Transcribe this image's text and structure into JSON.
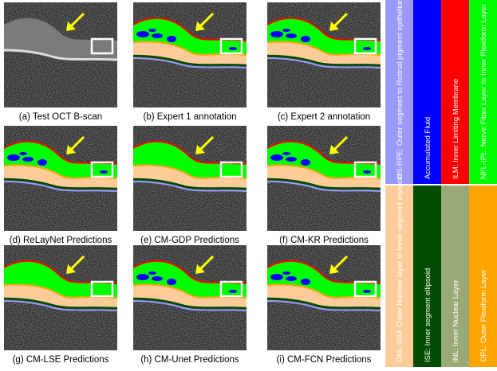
{
  "panels": [
    {
      "caption": "(a) Test OCT B-scan"
    },
    {
      "caption": "(b) Expert 1 annotation"
    },
    {
      "caption": "(c) Expert 2 annotation"
    },
    {
      "caption": "(d) ReLayNet Predictions"
    },
    {
      "caption": "(e) CM-GDP Predictions"
    },
    {
      "caption": "(f) CM-KR Predictions"
    },
    {
      "caption": "(g) CM-LSE Predictions"
    },
    {
      "caption": "(h) CM-Unet Predictions"
    },
    {
      "caption": "(i) CM-FCN Predictions"
    }
  ],
  "legend": [
    {
      "label": "OS-RPE: Outer segment to Retinal pigment epithelium",
      "color": "#9999ff"
    },
    {
      "label": "Accumulated Fluid",
      "color": "#0000ff"
    },
    {
      "label": "ILM: Inner Limiting Membrane",
      "color": "#ff0000"
    },
    {
      "label": "NFL-IPL: Nerve Fiber Layer to Inner Plexiform Layer",
      "color": "#00ff00"
    },
    {
      "label": "ONL-ISM: Outer Nuclear layer to Inner segment myeloid",
      "color": "#ffcc99"
    },
    {
      "label": "ISE: Inner segment ellipsoid",
      "color": "#004d00"
    },
    {
      "label": "INL: Inner Nuclear Layer",
      "color": "#99aa77"
    },
    {
      "label": "OPL: Outer Plexiform Layer",
      "color": "#ffa500"
    }
  ]
}
